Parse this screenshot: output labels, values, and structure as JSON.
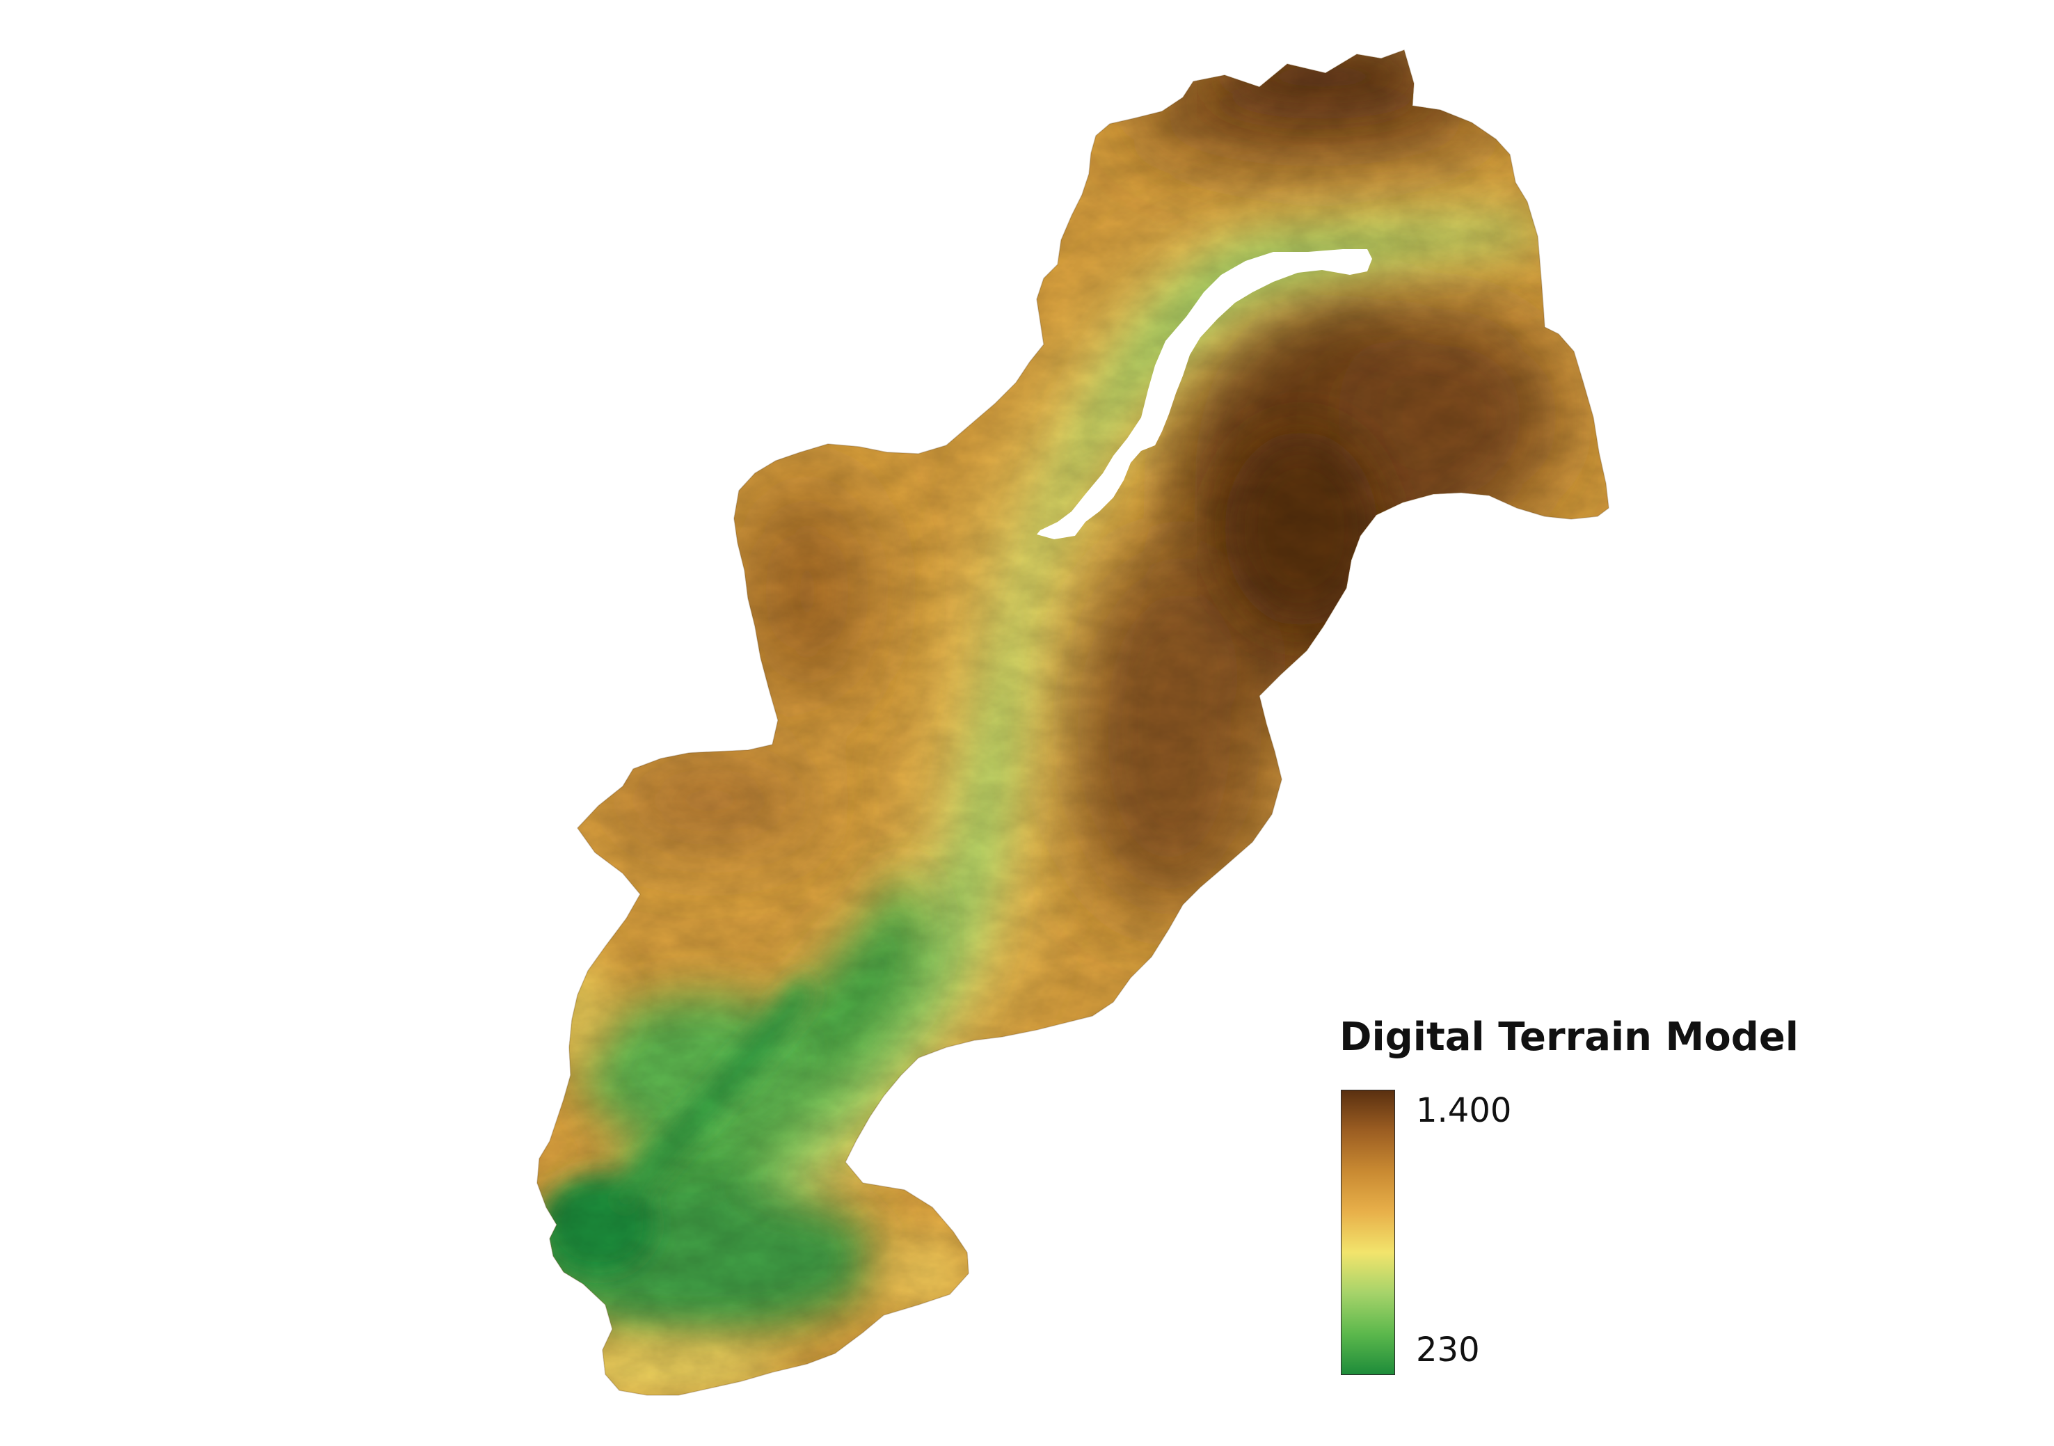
{
  "map": {
    "type": "digital-terrain-model",
    "color_ramp": {
      "name": "green-yellow-brown",
      "stops": [
        "#1e8c3a",
        "#5cb84c",
        "#a6d36a",
        "#f2e46c",
        "#e8b04a",
        "#c98a32",
        "#9c5e22",
        "#5a3010"
      ]
    },
    "background": "#ffffff"
  },
  "legend": {
    "title": "Digital Terrain Model",
    "max_label": "1.400",
    "min_label": "230",
    "max_value": 1400,
    "min_value": 230
  }
}
